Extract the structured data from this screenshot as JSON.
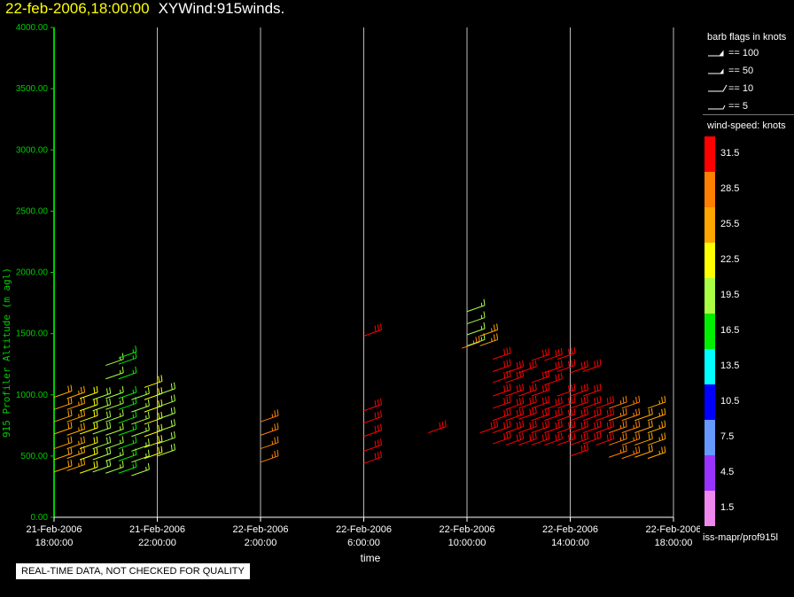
{
  "title": {
    "date": "22-feb-2006,18:00:00",
    "name": "XYWind:915winds."
  },
  "notice": "REAL-TIME DATA, NOT CHECKED FOR QUALITY",
  "source": "iss-mapr/prof915l",
  "legend": {
    "flags_title": "barb flags in knots",
    "flags": [
      {
        "label": "== 100",
        "kind": "pennant"
      },
      {
        "label": "== 50",
        "kind": "pennant-small"
      },
      {
        "label": "== 10",
        "kind": "full"
      },
      {
        "label": "== 5",
        "kind": "half"
      }
    ],
    "speed_title": "wind-speed: knots",
    "colorbar": [
      {
        "label": "31.5",
        "color": "#ff0000"
      },
      {
        "label": "28.5",
        "color": "#ff8000"
      },
      {
        "label": "25.5",
        "color": "#ffa500"
      },
      {
        "label": "22.5",
        "color": "#ffff00"
      },
      {
        "label": "19.5",
        "color": "#aaff44"
      },
      {
        "label": "16.5",
        "color": "#00ee00"
      },
      {
        "label": "13.5",
        "color": "#00ffff"
      },
      {
        "label": "10.5",
        "color": "#0000ff"
      },
      {
        "label": "7.5",
        "color": "#6699ff"
      },
      {
        "label": "4.5",
        "color": "#9933ff"
      },
      {
        "label": "1.5",
        "color": "#ee88ee"
      }
    ]
  },
  "chart_data": {
    "type": "scatter",
    "xlabel": "time",
    "ylabel": "915 Profiler Altitude (m agl)",
    "ylim": [
      0,
      4000
    ],
    "xlim_hours": [
      18,
      42
    ],
    "yticks": [
      "0.00",
      "500.00",
      "1000.00",
      "1500.00",
      "2000.00",
      "2500.00",
      "3000.00",
      "3500.00",
      "4000.00"
    ],
    "xticks": [
      {
        "date": "21-Feb-2006",
        "time": "18:00:00",
        "hour": 18
      },
      {
        "date": "21-Feb-2006",
        "time": "22:00:00",
        "hour": 22
      },
      {
        "date": "22-Feb-2006",
        "time": "2:00:00",
        "hour": 26
      },
      {
        "date": "22-Feb-2006",
        "time": "6:00:00",
        "hour": 30
      },
      {
        "date": "22-Feb-2006",
        "time": "10:00:00",
        "hour": 34
      },
      {
        "date": "22-Feb-2006",
        "time": "14:00:00",
        "hour": 38
      },
      {
        "date": "22-Feb-2006",
        "time": "18:00:00",
        "hour": 42
      }
    ],
    "grid": "vertical",
    "columns": [
      {
        "t": 18.0,
        "alts": [
          370,
          470,
          560,
          680,
          780,
          880,
          980
        ],
        "speed": 24
      },
      {
        "t": 18.5,
        "alts": [
          380,
          480,
          560,
          670,
          780,
          880,
          970
        ],
        "speed": 25
      },
      {
        "t": 19.0,
        "alts": [
          360,
          470,
          560,
          680,
          780,
          870,
          970
        ],
        "speed": 23
      },
      {
        "t": 19.5,
        "alts": [
          370,
          470,
          560,
          680,
          770,
          870,
          960
        ],
        "speed": 20
      },
      {
        "t": 20.0,
        "alts": [
          360,
          460,
          560,
          670,
          780,
          880,
          970,
          1130,
          1240
        ],
        "speed": 18
      },
      {
        "t": 20.5,
        "alts": [
          360,
          460,
          560,
          670,
          770,
          880,
          970,
          1130,
          1250,
          1300
        ],
        "speed": 17
      },
      {
        "t": 21.0,
        "alts": [
          340,
          450,
          540,
          660,
          760,
          860,
          960
        ],
        "speed": 19
      },
      {
        "t": 21.5,
        "alts": [
          480,
          570,
          660,
          760,
          860,
          960,
          1060
        ],
        "speed": 22
      },
      {
        "t": 22.0,
        "alts": [
          500,
          600,
          700,
          800,
          900,
          1000
        ],
        "speed": 20
      },
      {
        "t": 26.0,
        "alts": [
          450,
          560,
          670,
          780
        ],
        "speed": 29
      },
      {
        "t": 30.0,
        "alts": [
          440,
          540,
          660,
          770,
          870,
          1480
        ],
        "speed": 30
      },
      {
        "t": 32.5,
        "alts": [
          690
        ],
        "speed": 32
      },
      {
        "t": 33.8,
        "alts": [
          1380
        ],
        "speed": 28
      },
      {
        "t": 34.0,
        "alts": [
          1400,
          1490,
          1580,
          1680
        ],
        "speed": 18
      },
      {
        "t": 34.5,
        "alts": [
          1400,
          1480
        ],
        "speed": 26
      },
      {
        "t": 34.5,
        "alts": [
          690
        ],
        "speed": 32
      },
      {
        "t": 35.0,
        "alts": [
          1290,
          1190,
          1100,
          990,
          890,
          790,
          690,
          600
        ],
        "speed": 32
      },
      {
        "t": 35.5,
        "alts": [
          1180,
          1100,
          990,
          880,
          790,
          690,
          590
        ],
        "speed": 32
      },
      {
        "t": 36.0,
        "alts": [
          1180,
          990,
          890,
          800,
          690,
          590
        ],
        "speed": 32
      },
      {
        "t": 36.5,
        "alts": [
          1280,
          1100,
          990,
          890,
          790,
          690,
          590
        ],
        "speed": 32
      },
      {
        "t": 37.0,
        "alts": [
          1280,
          1180,
          1080,
          880,
          790,
          690,
          590
        ],
        "speed": 32
      },
      {
        "t": 37.5,
        "alts": [
          1290,
          1190,
          990,
          890,
          790,
          690,
          590
        ],
        "speed": 31
      },
      {
        "t": 38.0,
        "alts": [
          1180,
          990,
          890,
          790,
          690,
          590,
          500
        ],
        "speed": 31
      },
      {
        "t": 38.5,
        "alts": [
          1190,
          990,
          890,
          790,
          690,
          600
        ],
        "speed": 30
      },
      {
        "t": 39.0,
        "alts": [
          890,
          790,
          690,
          590
        ],
        "speed": 30
      },
      {
        "t": 39.5,
        "alts": [
          890,
          790,
          690,
          590,
          490
        ],
        "speed": 29
      },
      {
        "t": 40.0,
        "alts": [
          890,
          790,
          690,
          590,
          480
        ],
        "speed": 27
      },
      {
        "t": 40.5,
        "alts": [
          790,
          690,
          590,
          490
        ],
        "speed": 24
      },
      {
        "t": 41.0,
        "alts": [
          890,
          790,
          690,
          590,
          480
        ],
        "speed": 25
      }
    ]
  }
}
